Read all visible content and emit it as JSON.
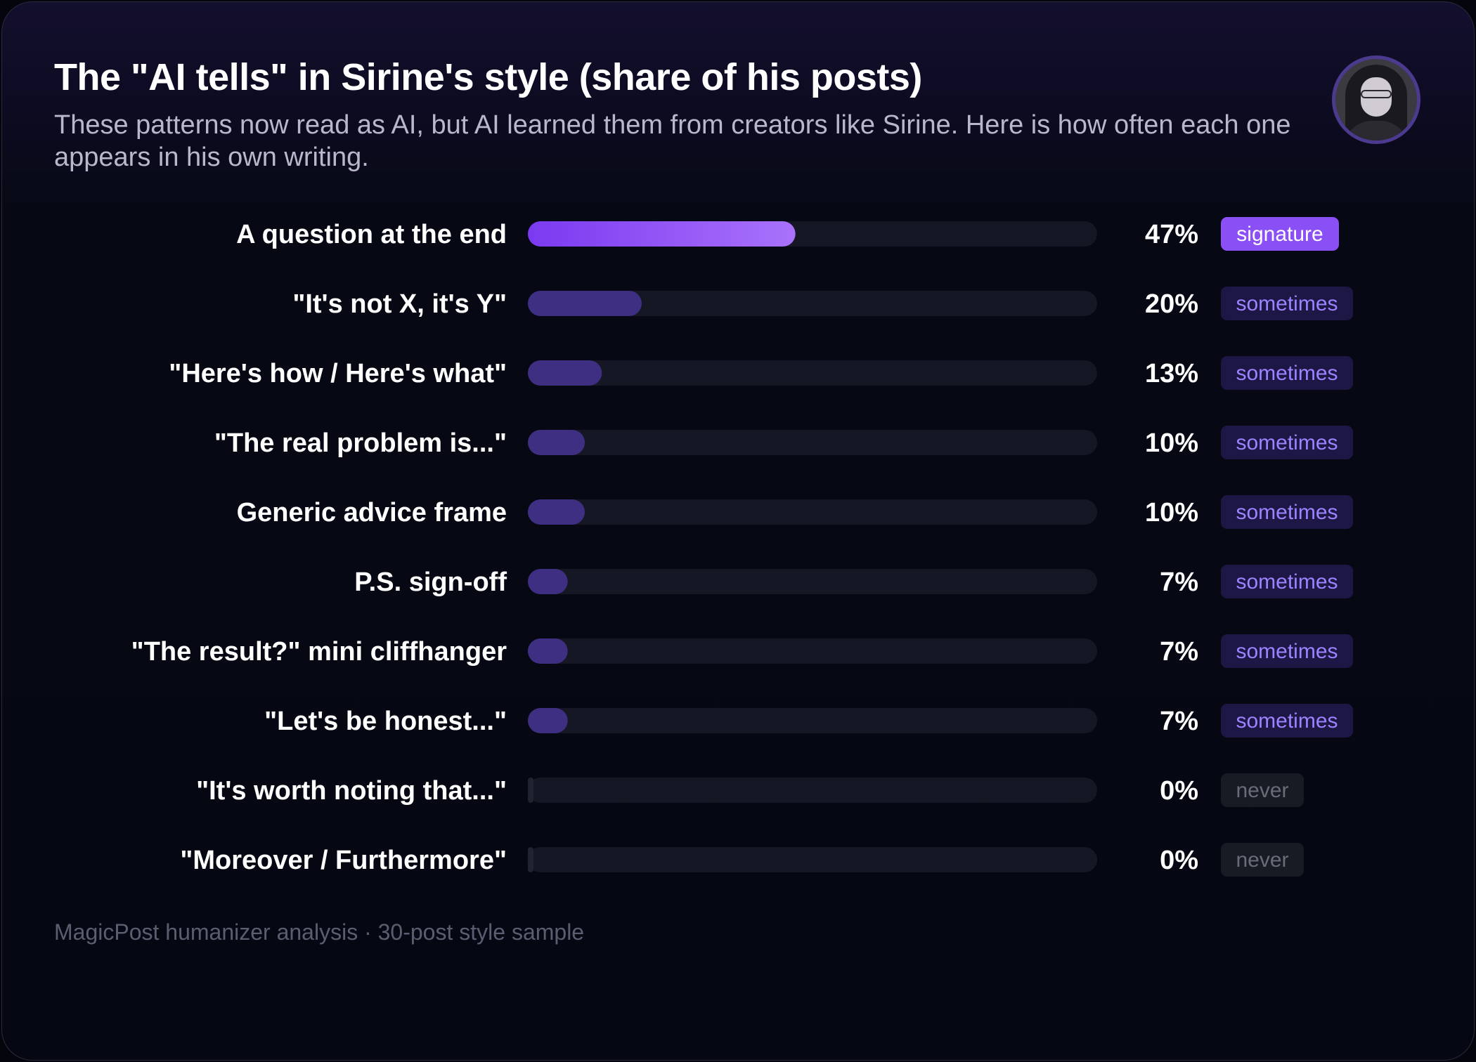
{
  "header": {
    "title": "The \"AI tells\" in Sirine's style (share of his posts)",
    "subtitle": "These patterns now read as AI, but AI learned them from creators like Sirine. Here is how often each one appears in his own writing."
  },
  "footer": {
    "text": "MagicPost humanizer analysis · 30-post style sample"
  },
  "colors": {
    "track": "#161725",
    "highlight_start": "#7b3af0",
    "highlight_end": "#a972fb",
    "bar_default": "#3e2f82",
    "tag_signature_bg": "#8b50f5",
    "tag_signature_text": "#ffffff",
    "tag_sometimes_bg": "#1d1745",
    "tag_sometimes_text": "#9d83ff",
    "tag_never_bg": "#181a24",
    "tag_never_text": "#6a6c7a"
  },
  "chart_data": {
    "type": "bar",
    "orientation": "horizontal",
    "title": "The \"AI tells\" in Sirine's style (share of his posts)",
    "xlim": [
      0,
      100
    ],
    "unit": "%",
    "grid": false,
    "categories": [
      "A question at the end",
      "\"It's not X, it's Y\"",
      "\"Here's how / Here's what\"",
      "\"The real problem is...\"",
      "Generic advice frame",
      "P.S. sign-off",
      "\"The result?\" mini cliffhanger",
      "\"Let's be honest...\"",
      "\"It's worth noting that...\"",
      "\"Moreover / Furthermore\""
    ],
    "values": [
      47,
      20,
      13,
      10,
      10,
      7,
      7,
      7,
      0,
      0
    ],
    "value_labels": [
      "47%",
      "20%",
      "13%",
      "10%",
      "10%",
      "7%",
      "7%",
      "7%",
      "0%",
      "0%"
    ],
    "tags": [
      "signature",
      "sometimes",
      "sometimes",
      "sometimes",
      "sometimes",
      "sometimes",
      "sometimes",
      "sometimes",
      "never",
      "never"
    ]
  }
}
